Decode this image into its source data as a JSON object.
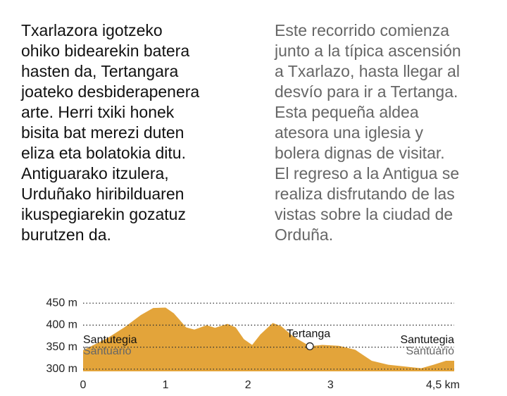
{
  "text_eu": [
    "Txarlazora igotzeko",
    "ohiko bidearekin batera",
    "hasten da, Tertangara",
    "joateko desbiderapenera",
    "arte. Herri txiki honek",
    "bisita bat merezi duten",
    "eliza eta bolatokia ditu.",
    "Antiguarako itzulera,",
    "Urduñako hiribilduaren",
    "ikuspegiarekin gozatuz",
    "burutzen da."
  ],
  "text_es": [
    "Este recorrido comienza",
    "junto a la típica ascensión",
    "a Txarlazo, hasta llegar al",
    "desvío para ir a Tertanga.",
    "Esta pequeña aldea",
    "atesora una iglesia y",
    "bolera dignas de visitar.",
    "El regreso a la Antigua se",
    "realiza disfrutando de las",
    "vistas sobre la ciudad de",
    "Orduña."
  ],
  "chart_data": {
    "type": "area",
    "color": "#e3a43a",
    "grid": true,
    "x": [
      0,
      0.3,
      0.5,
      0.7,
      0.85,
      1.0,
      1.1,
      1.25,
      1.35,
      1.5,
      1.6,
      1.75,
      1.85,
      1.95,
      2.05,
      2.15,
      2.3,
      2.4,
      2.55,
      2.75,
      2.9,
      3.1,
      3.3,
      3.5,
      3.7,
      3.9,
      4.1,
      4.25,
      4.4,
      4.5
    ],
    "y": [
      343,
      371,
      395,
      423,
      439,
      440,
      427,
      395,
      390,
      400,
      394,
      403,
      395,
      368,
      355,
      379,
      405,
      398,
      374,
      352,
      355,
      353,
      344,
      319,
      310,
      306,
      302,
      310,
      319,
      319
    ],
    "xlim": [
      0,
      4.5
    ],
    "ylim": [
      295,
      460
    ],
    "xticks": [
      0,
      1,
      2,
      3,
      {
        "value": 4.5,
        "label": "4,5 km"
      }
    ],
    "yticks": [
      {
        "value": 300,
        "label": "300 m"
      },
      {
        "value": 350,
        "label": "350 m"
      },
      {
        "value": 400,
        "label": "400 m"
      },
      {
        "value": 450,
        "label": "450 m"
      }
    ],
    "start_label": [
      "Santutegia",
      "Santuario"
    ],
    "end_label": [
      "Santutegia",
      "Santuario"
    ],
    "markers": [
      {
        "label": "Tertanga",
        "x": 2.75,
        "y": 352
      }
    ]
  }
}
